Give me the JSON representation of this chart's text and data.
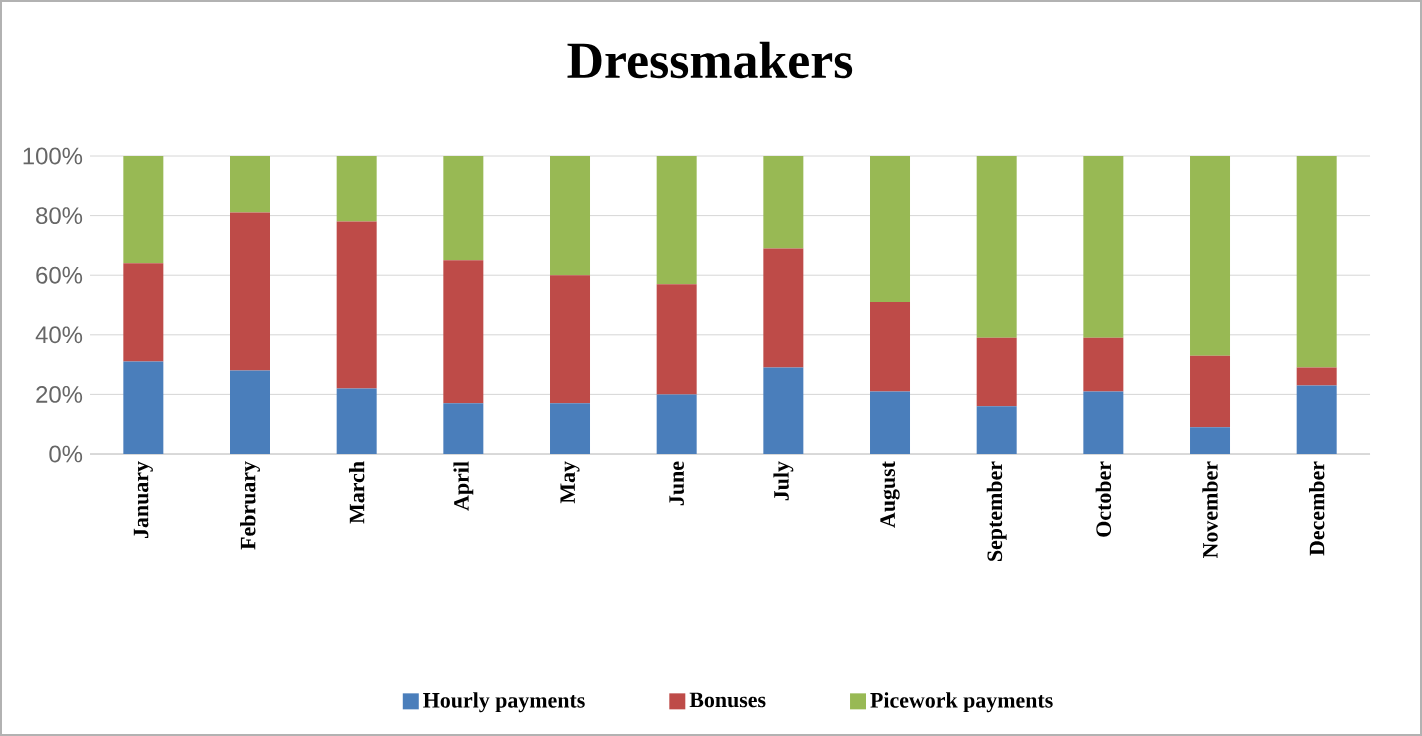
{
  "chart_data": {
    "type": "bar",
    "stacked": true,
    "title": "Dressmakers",
    "categories": [
      "January",
      "February",
      "March",
      "April",
      "May",
      "June",
      "July",
      "August",
      "September",
      "October",
      "November",
      "December"
    ],
    "series": [
      {
        "name": "Hourly payments",
        "color": "#4a7ebb",
        "values": [
          31,
          28,
          22,
          17,
          17,
          20,
          29,
          21,
          16,
          21,
          9,
          23
        ]
      },
      {
        "name": "Bonuses",
        "color": "#be4b48",
        "values": [
          33,
          53,
          56,
          48,
          43,
          37,
          40,
          30,
          23,
          18,
          24,
          6
        ]
      },
      {
        "name": "Picework payments",
        "color": "#98b954",
        "values": [
          36,
          19,
          22,
          35,
          40,
          43,
          31,
          49,
          61,
          61,
          67,
          71
        ]
      }
    ],
    "ylim": [
      0,
      100
    ],
    "yticks": [
      {
        "value": 0,
        "label": "0%"
      },
      {
        "value": 20,
        "label": "20%"
      },
      {
        "value": 40,
        "label": "40%"
      },
      {
        "value": 60,
        "label": "60%"
      },
      {
        "value": 80,
        "label": "80%"
      },
      {
        "value": 100,
        "label": "100%"
      }
    ],
    "grid": "y",
    "legend": "bottom"
  }
}
